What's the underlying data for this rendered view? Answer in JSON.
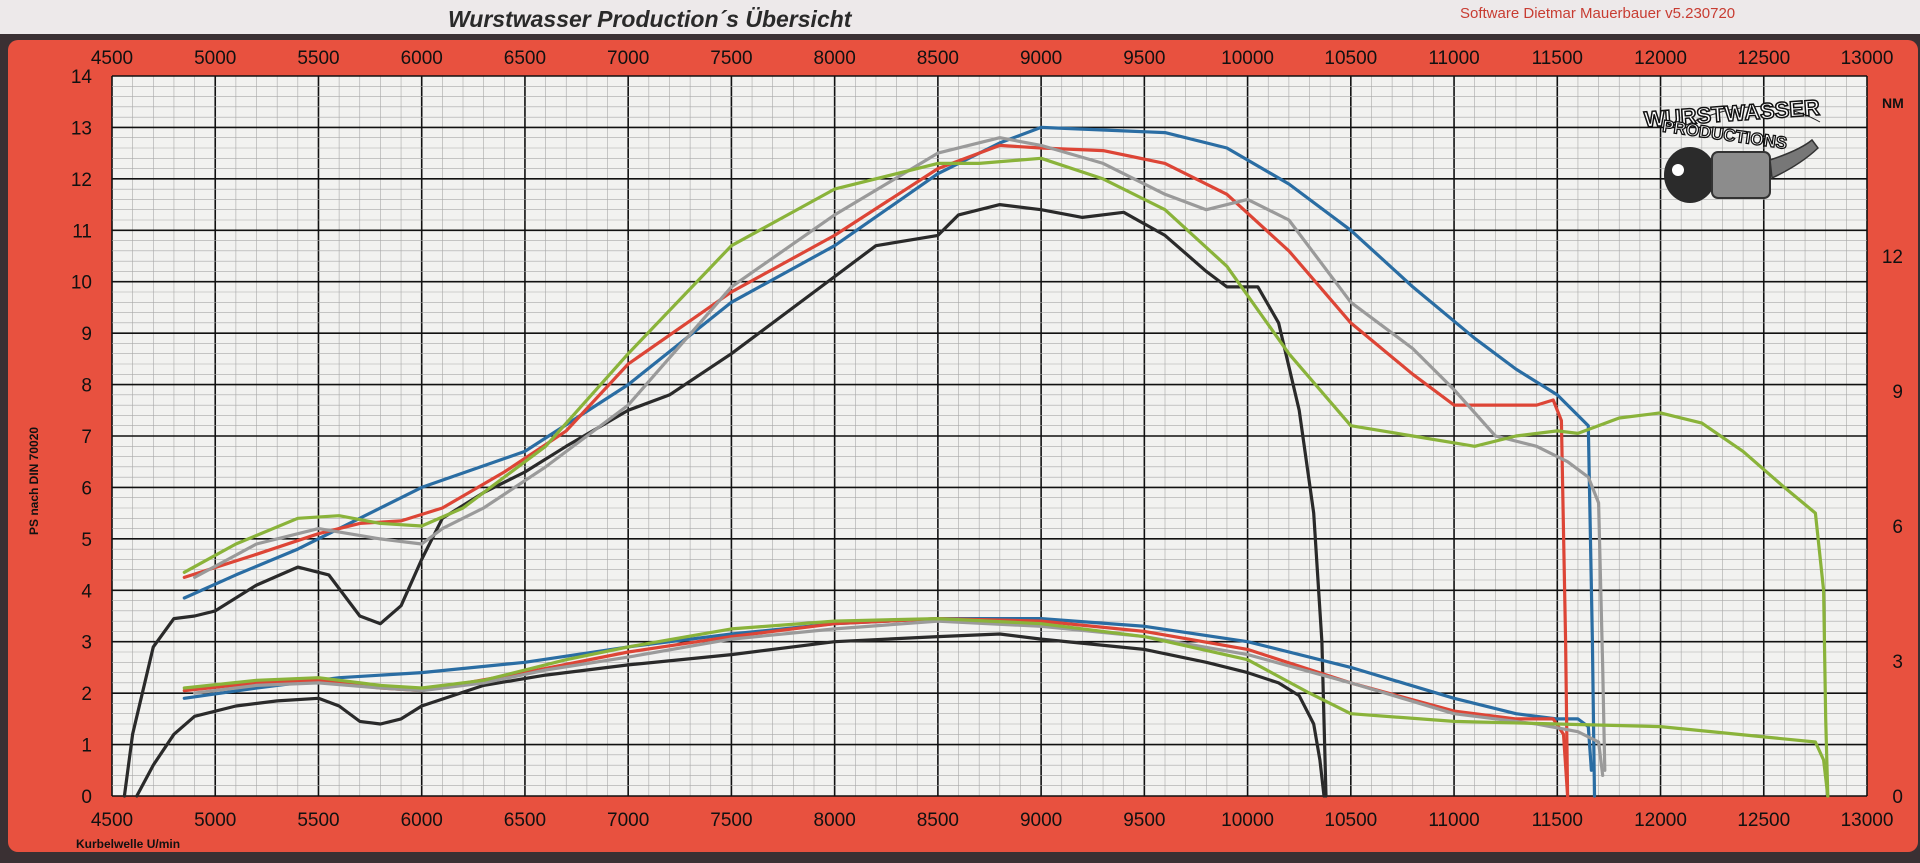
{
  "header": {
    "title": "Wurstwasser Production´s Übersicht",
    "software": "Software Dietmar Mauerbauer v5.230720"
  },
  "logo": {
    "line1": "WURSTWASSER",
    "line2": "PRODUCTIONS"
  },
  "colors": {
    "frame": "#e8513f",
    "paper": "#f2f2f0",
    "header_bg": "#ede9ea",
    "grid_minor": "#a8a8a8",
    "grid_major": "#111111"
  },
  "chart_data": {
    "type": "line",
    "xlabel": "Kurbelwelle U/min",
    "ylabel": "PS nach DIN 70020",
    "y2label": "NM",
    "xlim": [
      4500,
      13000
    ],
    "ylim": [
      0,
      14
    ],
    "y2lim": [
      0,
      16
    ],
    "x_ticks": [
      4500,
      5000,
      5500,
      6000,
      6500,
      7000,
      7500,
      8000,
      8500,
      9000,
      9500,
      10000,
      10500,
      11000,
      11500,
      12000,
      12500,
      13000
    ],
    "y_ticks": [
      0,
      1,
      2,
      3,
      4,
      5,
      6,
      7,
      8,
      9,
      10,
      11,
      12,
      13,
      14
    ],
    "y2_ticks": [
      0,
      3,
      6,
      9,
      12
    ],
    "grid": true,
    "series": [
      {
        "color": "#2a2a2a",
        "kind": "power",
        "values": [
          [
            4560,
            0
          ],
          [
            4600,
            1.2
          ],
          [
            4700,
            2.9
          ],
          [
            4800,
            3.45
          ],
          [
            4900,
            3.5
          ],
          [
            5000,
            3.6
          ],
          [
            5200,
            4.1
          ],
          [
            5400,
            4.45
          ],
          [
            5550,
            4.3
          ],
          [
            5700,
            3.5
          ],
          [
            5800,
            3.35
          ],
          [
            5900,
            3.7
          ],
          [
            6000,
            4.6
          ],
          [
            6100,
            5.4
          ],
          [
            6300,
            5.9
          ],
          [
            6500,
            6.3
          ],
          [
            6700,
            6.8
          ],
          [
            7000,
            7.5
          ],
          [
            7200,
            7.8
          ],
          [
            7500,
            8.6
          ],
          [
            8000,
            10.1
          ],
          [
            8200,
            10.7
          ],
          [
            8500,
            10.9
          ],
          [
            8600,
            11.3
          ],
          [
            8800,
            11.5
          ],
          [
            9000,
            11.4
          ],
          [
            9200,
            11.25
          ],
          [
            9400,
            11.35
          ],
          [
            9600,
            10.9
          ],
          [
            9800,
            10.2
          ],
          [
            9900,
            9.9
          ],
          [
            10050,
            9.9
          ],
          [
            10150,
            9.2
          ],
          [
            10250,
            7.5
          ],
          [
            10320,
            5.5
          ],
          [
            10360,
            3.0
          ],
          [
            10380,
            0
          ]
        ]
      },
      {
        "color": "#2a2a2a",
        "kind": "torque",
        "values": [
          [
            4620,
            0
          ],
          [
            4700,
            0.6
          ],
          [
            4800,
            1.2
          ],
          [
            4900,
            1.55
          ],
          [
            5100,
            1.75
          ],
          [
            5300,
            1.85
          ],
          [
            5500,
            1.9
          ],
          [
            5600,
            1.75
          ],
          [
            5700,
            1.45
          ],
          [
            5800,
            1.4
          ],
          [
            5900,
            1.5
          ],
          [
            6000,
            1.75
          ],
          [
            6300,
            2.15
          ],
          [
            6600,
            2.35
          ],
          [
            7000,
            2.55
          ],
          [
            7500,
            2.75
          ],
          [
            8000,
            3.0
          ],
          [
            8500,
            3.1
          ],
          [
            8800,
            3.15
          ],
          [
            9000,
            3.05
          ],
          [
            9500,
            2.85
          ],
          [
            9800,
            2.6
          ],
          [
            10000,
            2.4
          ],
          [
            10150,
            2.2
          ],
          [
            10250,
            1.95
          ],
          [
            10320,
            1.4
          ],
          [
            10350,
            0.7
          ],
          [
            10370,
            0
          ]
        ]
      },
      {
        "color": "#2a6da3",
        "kind": "power",
        "values": [
          [
            4850,
            3.85
          ],
          [
            5100,
            4.3
          ],
          [
            5400,
            4.8
          ],
          [
            5600,
            5.2
          ],
          [
            6000,
            6.0
          ],
          [
            6500,
            6.7
          ],
          [
            7000,
            8.0
          ],
          [
            7500,
            9.6
          ],
          [
            8000,
            10.7
          ],
          [
            8500,
            12.1
          ],
          [
            8800,
            12.7
          ],
          [
            9000,
            13.0
          ],
          [
            9300,
            12.95
          ],
          [
            9600,
            12.9
          ],
          [
            9900,
            12.6
          ],
          [
            10200,
            11.9
          ],
          [
            10500,
            11.0
          ],
          [
            10800,
            9.9
          ],
          [
            11100,
            8.9
          ],
          [
            11300,
            8.3
          ],
          [
            11500,
            7.8
          ],
          [
            11600,
            7.4
          ],
          [
            11650,
            7.2
          ],
          [
            11670,
            3.0
          ],
          [
            11680,
            0
          ]
        ]
      },
      {
        "color": "#2a6da3",
        "kind": "torque",
        "values": [
          [
            4850,
            1.9
          ],
          [
            5200,
            2.1
          ],
          [
            5600,
            2.3
          ],
          [
            6000,
            2.4
          ],
          [
            6500,
            2.6
          ],
          [
            7000,
            2.9
          ],
          [
            7500,
            3.15
          ],
          [
            8000,
            3.35
          ],
          [
            8500,
            3.45
          ],
          [
            9000,
            3.45
          ],
          [
            9500,
            3.3
          ],
          [
            10000,
            3.0
          ],
          [
            10500,
            2.5
          ],
          [
            11000,
            1.9
          ],
          [
            11300,
            1.6
          ],
          [
            11500,
            1.5
          ],
          [
            11600,
            1.5
          ],
          [
            11650,
            1.35
          ],
          [
            11665,
            0.5
          ]
        ]
      },
      {
        "color": "#dd4536",
        "kind": "power",
        "values": [
          [
            4850,
            4.25
          ],
          [
            5200,
            4.7
          ],
          [
            5500,
            5.1
          ],
          [
            5700,
            5.3
          ],
          [
            5900,
            5.35
          ],
          [
            6100,
            5.6
          ],
          [
            6400,
            6.3
          ],
          [
            6700,
            7.1
          ],
          [
            7000,
            8.4
          ],
          [
            7500,
            9.8
          ],
          [
            8000,
            10.9
          ],
          [
            8500,
            12.2
          ],
          [
            8800,
            12.65
          ],
          [
            9000,
            12.6
          ],
          [
            9300,
            12.55
          ],
          [
            9600,
            12.3
          ],
          [
            9900,
            11.7
          ],
          [
            10200,
            10.6
          ],
          [
            10500,
            9.2
          ],
          [
            10800,
            8.2
          ],
          [
            11000,
            7.6
          ],
          [
            11200,
            7.6
          ],
          [
            11400,
            7.6
          ],
          [
            11480,
            7.7
          ],
          [
            11520,
            7.3
          ],
          [
            11540,
            3.0
          ],
          [
            11550,
            0
          ]
        ]
      },
      {
        "color": "#dd4536",
        "kind": "torque",
        "values": [
          [
            4850,
            2.05
          ],
          [
            5200,
            2.2
          ],
          [
            5500,
            2.25
          ],
          [
            5800,
            2.1
          ],
          [
            6000,
            2.05
          ],
          [
            6500,
            2.4
          ],
          [
            7000,
            2.8
          ],
          [
            7500,
            3.1
          ],
          [
            8000,
            3.35
          ],
          [
            8500,
            3.45
          ],
          [
            9000,
            3.4
          ],
          [
            9500,
            3.2
          ],
          [
            10000,
            2.85
          ],
          [
            10500,
            2.2
          ],
          [
            11000,
            1.65
          ],
          [
            11300,
            1.5
          ],
          [
            11480,
            1.5
          ],
          [
            11530,
            1.2
          ],
          [
            11550,
            0
          ]
        ]
      },
      {
        "color": "#9a9a9a",
        "kind": "power",
        "values": [
          [
            4900,
            4.25
          ],
          [
            5200,
            4.9
          ],
          [
            5500,
            5.2
          ],
          [
            5800,
            5.0
          ],
          [
            6000,
            4.9
          ],
          [
            6100,
            5.2
          ],
          [
            6300,
            5.6
          ],
          [
            6600,
            6.4
          ],
          [
            7000,
            7.6
          ],
          [
            7500,
            9.9
          ],
          [
            8000,
            11.3
          ],
          [
            8500,
            12.5
          ],
          [
            8800,
            12.8
          ],
          [
            9000,
            12.65
          ],
          [
            9300,
            12.3
          ],
          [
            9600,
            11.7
          ],
          [
            9800,
            11.4
          ],
          [
            10000,
            11.6
          ],
          [
            10200,
            11.2
          ],
          [
            10500,
            9.6
          ],
          [
            10800,
            8.7
          ],
          [
            11000,
            7.9
          ],
          [
            11200,
            7.0
          ],
          [
            11400,
            6.8
          ],
          [
            11550,
            6.5
          ],
          [
            11650,
            6.2
          ],
          [
            11700,
            5.7
          ],
          [
            11720,
            2.5
          ],
          [
            11730,
            0.5
          ]
        ]
      },
      {
        "color": "#9a9a9a",
        "kind": "torque",
        "values": [
          [
            4900,
            2.0
          ],
          [
            5200,
            2.15
          ],
          [
            5500,
            2.2
          ],
          [
            5800,
            2.1
          ],
          [
            6000,
            2.05
          ],
          [
            6300,
            2.2
          ],
          [
            6600,
            2.45
          ],
          [
            7000,
            2.7
          ],
          [
            7500,
            3.05
          ],
          [
            8000,
            3.25
          ],
          [
            8500,
            3.4
          ],
          [
            9000,
            3.3
          ],
          [
            9500,
            3.1
          ],
          [
            10000,
            2.75
          ],
          [
            10500,
            2.2
          ],
          [
            11000,
            1.6
          ],
          [
            11400,
            1.4
          ],
          [
            11600,
            1.25
          ],
          [
            11700,
            1.05
          ],
          [
            11720,
            0.4
          ]
        ]
      },
      {
        "color": "#8ab33a",
        "kind": "power",
        "values": [
          [
            4850,
            4.35
          ],
          [
            5100,
            4.9
          ],
          [
            5400,
            5.4
          ],
          [
            5600,
            5.45
          ],
          [
            5800,
            5.3
          ],
          [
            6000,
            5.25
          ],
          [
            6200,
            5.6
          ],
          [
            6600,
            6.8
          ],
          [
            7000,
            8.6
          ],
          [
            7500,
            10.7
          ],
          [
            8000,
            11.8
          ],
          [
            8500,
            12.3
          ],
          [
            8700,
            12.3
          ],
          [
            9000,
            12.4
          ],
          [
            9300,
            12.0
          ],
          [
            9600,
            11.4
          ],
          [
            9900,
            10.3
          ],
          [
            10200,
            8.6
          ],
          [
            10500,
            7.2
          ],
          [
            10800,
            7.0
          ],
          [
            11100,
            6.8
          ],
          [
            11300,
            7.0
          ],
          [
            11500,
            7.1
          ],
          [
            11600,
            7.05
          ],
          [
            11800,
            7.35
          ],
          [
            12000,
            7.45
          ],
          [
            12200,
            7.25
          ],
          [
            12400,
            6.7
          ],
          [
            12600,
            6.0
          ],
          [
            12750,
            5.5
          ],
          [
            12790,
            4.0
          ],
          [
            12800,
            1.5
          ],
          [
            12810,
            0
          ]
        ]
      },
      {
        "color": "#8ab33a",
        "kind": "torque",
        "values": [
          [
            4850,
            2.1
          ],
          [
            5200,
            2.25
          ],
          [
            5500,
            2.3
          ],
          [
            5800,
            2.15
          ],
          [
            6000,
            2.1
          ],
          [
            6300,
            2.25
          ],
          [
            6700,
            2.65
          ],
          [
            7000,
            2.9
          ],
          [
            7500,
            3.25
          ],
          [
            8000,
            3.4
          ],
          [
            8500,
            3.45
          ],
          [
            9000,
            3.35
          ],
          [
            9500,
            3.1
          ],
          [
            10000,
            2.65
          ],
          [
            10300,
            2.0
          ],
          [
            10500,
            1.6
          ],
          [
            11000,
            1.45
          ],
          [
            11500,
            1.4
          ],
          [
            12000,
            1.35
          ],
          [
            12500,
            1.15
          ],
          [
            12750,
            1.05
          ],
          [
            12790,
            0.7
          ],
          [
            12810,
            0
          ]
        ]
      }
    ]
  }
}
